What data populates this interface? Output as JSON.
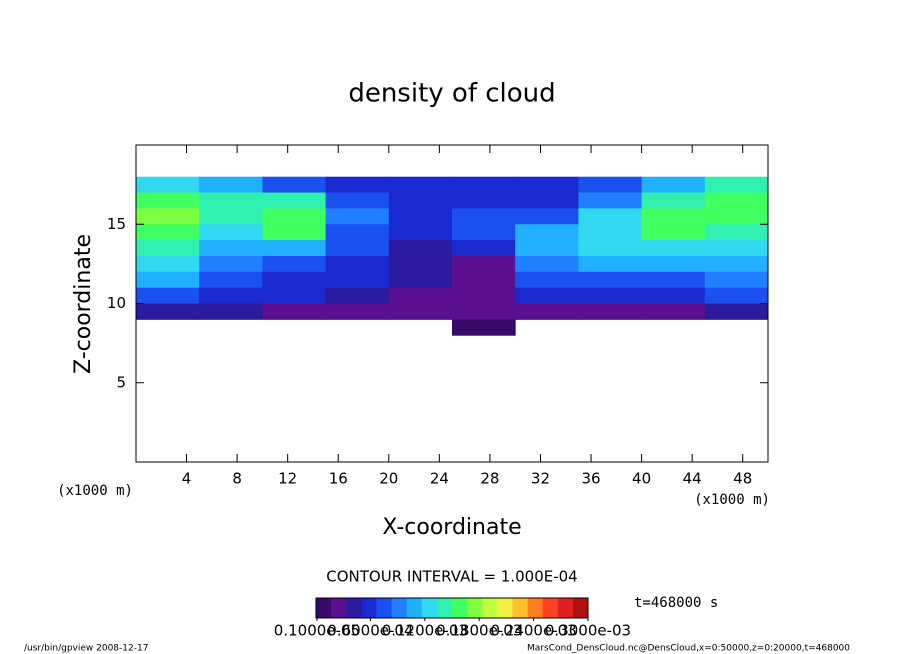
{
  "chart_data": {
    "type": "heatmap",
    "title": "density of cloud",
    "x_label": "X-coordinate",
    "y_label": "Z-coordinate",
    "x_unit": "(x1000 m)",
    "y_unit": "(x1000 m)",
    "xlim": [
      0,
      50
    ],
    "ylim": [
      0,
      20
    ],
    "xticks": [
      4,
      8,
      12,
      16,
      20,
      24,
      28,
      32,
      36,
      40,
      44,
      48
    ],
    "yticks": [
      5,
      10,
      15
    ],
    "x": [
      2.5,
      7.5,
      12.5,
      17.5,
      22.5,
      27.5,
      32.5,
      37.5,
      42.5,
      47.5
    ],
    "y": [
      17.5,
      16.5,
      15.5,
      14.5,
      13.5,
      12.5,
      11.5,
      10.5,
      9.5,
      8.5
    ],
    "values": [
      [
        0.00012,
        0.0001,
        8e-05,
        6e-05,
        5e-05,
        6e-05,
        5e-05,
        7e-05,
        0.0001,
        0.00014
      ],
      [
        0.00016,
        0.00014,
        0.00014,
        8e-05,
        5e-05,
        6e-05,
        6e-05,
        9e-05,
        0.00014,
        0.00016
      ],
      [
        0.00018,
        0.00014,
        0.00016,
        9e-05,
        5e-05,
        8e-05,
        8e-05,
        0.00012,
        0.00016,
        0.00016
      ],
      [
        0.00016,
        0.00012,
        0.00015,
        8e-05,
        5e-05,
        7e-05,
        0.0001,
        0.00013,
        0.00015,
        0.00014
      ],
      [
        0.00014,
        0.0001,
        0.0001,
        7e-05,
        4e-05,
        6e-05,
        0.0001,
        0.00012,
        0.00013,
        0.00012
      ],
      [
        0.00012,
        9e-05,
        8e-05,
        6e-05,
        4e-05,
        3e-05,
        9e-05,
        0.00011,
        0.0001,
        0.0001
      ],
      [
        0.0001,
        7e-05,
        6e-05,
        5e-05,
        4e-05,
        2e-05,
        7e-05,
        8e-05,
        8e-05,
        9e-05
      ],
      [
        7e-05,
        6e-05,
        5e-05,
        4e-05,
        3e-05,
        2e-05,
        5e-05,
        6e-05,
        6e-05,
        7e-05
      ],
      [
        4e-05,
        4e-05,
        3e-05,
        3e-05,
        3e-05,
        2e-05,
        3e-05,
        3e-05,
        3e-05,
        4e-05
      ],
      [
        null,
        null,
        null,
        null,
        null,
        1e-05,
        null,
        null,
        null,
        null
      ]
    ],
    "colors": [
      "#3a0a6a",
      "#5a1090",
      "#2a1aa0",
      "#1a2ad0",
      "#1a50f0",
      "#2080ff",
      "#20b0ff",
      "#30d8f0",
      "#30f0b0",
      "#40ff60",
      "#80ff40",
      "#c0ff40",
      "#f0f040",
      "#ffc030",
      "#ff8020",
      "#ff4020",
      "#e02020",
      "#b01010"
    ],
    "clim": [
      0,
      0.0003
    ],
    "colorbar_ticks": [
      {
        "value": 1e-06,
        "label": "0.1000e-05"
      },
      {
        "value": 6e-05,
        "label": "0.6000e-04"
      },
      {
        "value": 0.00012,
        "label": "0.1200e-03"
      },
      {
        "value": 0.00018,
        "label": "0.1800e-03"
      },
      {
        "value": 0.00024,
        "label": "0.2400e-03"
      },
      {
        "value": 0.0003,
        "label": "0.3000e-03"
      }
    ],
    "contour_interval": "CONTOUR INTERVAL = 1.000E-04",
    "time_label": "t=468000 s",
    "footer_left": "/usr/bin/gpview  2008-12-17",
    "footer_right": "MarsCond_DensCloud.nc@DensCloud,x=0:50000,z=0:20000,t=468000"
  }
}
